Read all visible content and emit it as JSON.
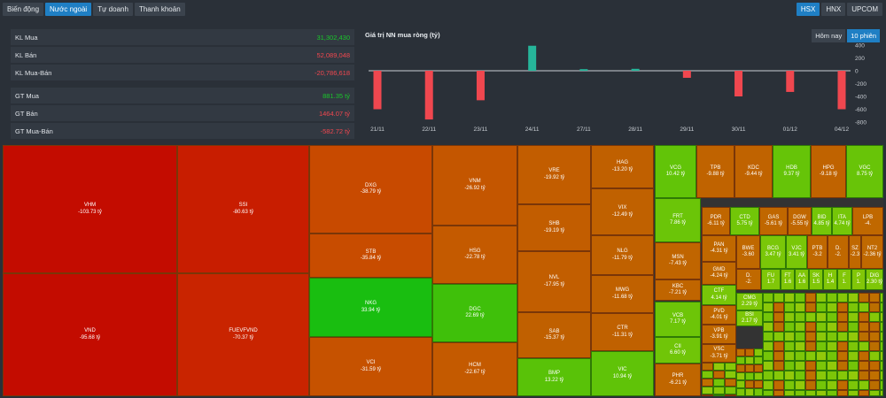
{
  "tabs": [
    "Biến động",
    "Nước ngoài",
    "Tự doanh",
    "Thanh khoản"
  ],
  "active_tab": 1,
  "exchanges": [
    "HSX",
    "HNX",
    "UPCOM"
  ],
  "active_exchange": 0,
  "stats": [
    {
      "label": "KL Mua",
      "value": "31,302,430",
      "color": "g"
    },
    {
      "label": "KL Bán",
      "value": "52,089,048",
      "color": "r"
    },
    {
      "label": "KL Mua-Bán",
      "value": "-20,786,618",
      "color": "r"
    },
    {
      "label": "GT Mua",
      "value": "881.35 tỷ",
      "color": "g"
    },
    {
      "label": "GT Bán",
      "value": "1464.07 tỷ",
      "color": "r"
    },
    {
      "label": "GT Mua-Bán",
      "value": "-582.72 tỷ",
      "color": "r"
    }
  ],
  "chart_data": {
    "type": "bar",
    "title": "Giá trị NN mua ròng (tỷ)",
    "categories": [
      "21/11",
      "",
      "22/11",
      "",
      "23/11",
      "",
      "24/11",
      "",
      "27/11",
      "",
      "28/11",
      "",
      "29/11",
      "",
      "30/11",
      "",
      "01/12",
      "",
      "04/12"
    ],
    "values": [
      -600,
      0,
      -760,
      0,
      -460,
      0,
      390,
      0,
      25,
      0,
      30,
      0,
      -110,
      0,
      -400,
      0,
      -330,
      0,
      -600
    ],
    "ylim": [
      -800,
      400
    ],
    "yticks": [
      "400",
      "200",
      "0",
      "-200",
      "-400",
      "-600",
      "-800"
    ],
    "colors": {
      "pos": "#26b59a",
      "neg": "#f0474f"
    },
    "periods": [
      "Hôm nay",
      "10 phiên"
    ],
    "active_period": 1
  },
  "treemap": [
    {
      "n": "VHM",
      "v": "-103.73 tỷ",
      "c": "#c30c00"
    },
    {
      "n": "VND",
      "v": "-95.68 tỷ",
      "c": "#c30c00"
    },
    {
      "n": "SSI",
      "v": "-80.63 tỷ",
      "c": "#c81d00"
    },
    {
      "n": "FUEVFVND",
      "v": "-70.37 tỷ",
      "c": "#c92400"
    },
    {
      "n": "DXG",
      "v": "-38.79 tỷ",
      "c": "#c84a00"
    },
    {
      "n": "STB",
      "v": "-35.84 tỷ",
      "c": "#c84c00"
    },
    {
      "n": "NKG",
      "v": "33.94 tỷ",
      "c": "#19be10"
    },
    {
      "n": "VCI",
      "v": "-31.59 tỷ",
      "c": "#c65200"
    },
    {
      "n": "VNM",
      "v": "-26.92 tỷ",
      "c": "#c45600"
    },
    {
      "n": "HSG",
      "v": "-22.78 tỷ",
      "c": "#c45a00"
    },
    {
      "n": "DGC",
      "v": "22.69 tỷ",
      "c": "#3fc00a"
    },
    {
      "n": "HCM",
      "v": "-22.67 tỷ",
      "c": "#c45a00"
    },
    {
      "n": "VRE",
      "v": "-19.92 tỷ",
      "c": "#c25d00"
    },
    {
      "n": "SHB",
      "v": "-19.19 tỷ",
      "c": "#c25d00"
    },
    {
      "n": "NVL",
      "v": "-17.95 tỷ",
      "c": "#c25e00"
    },
    {
      "n": "SAB",
      "v": "-15.37 tỷ",
      "c": "#c06000"
    },
    {
      "n": "BMP",
      "v": "13.22 tỷ",
      "c": "#59c208"
    },
    {
      "n": "HAG",
      "v": "-13.20 tỷ",
      "c": "#c06000"
    },
    {
      "n": "VIX",
      "v": "-12.49 tỷ",
      "c": "#c06100"
    },
    {
      "n": "NLG",
      "v": "-11.79 tỷ",
      "c": "#c06100"
    },
    {
      "n": "MWG",
      "v": "-11.68 tỷ",
      "c": "#c06100"
    },
    {
      "n": "CTR",
      "v": "-11.31 tỷ",
      "c": "#c06100"
    },
    {
      "n": "VIC",
      "v": "10.94 tỷ",
      "c": "#60c308"
    },
    {
      "n": "VCG",
      "v": "10.42 tỷ",
      "c": "#62c408"
    },
    {
      "n": "TPB",
      "v": "-9.88 tỷ",
      "c": "#c06300"
    },
    {
      "n": "KDC",
      "v": "-9.44 tỷ",
      "c": "#c06300"
    },
    {
      "n": "HDB",
      "v": "9.37 tỷ",
      "c": "#66c408"
    },
    {
      "n": "HPG",
      "v": "-9.18 tỷ",
      "c": "#c06300"
    },
    {
      "n": "VGC",
      "v": "8.75 tỷ",
      "c": "#68c408"
    },
    {
      "n": "FRT",
      "v": "7.86 tỷ",
      "c": "#6bc508"
    },
    {
      "n": "MSN",
      "v": "-7.43 tỷ",
      "c": "#c06500"
    },
    {
      "n": "KBC",
      "v": "-7.21 tỷ",
      "c": "#c06500"
    },
    {
      "n": "VCB",
      "v": "7.17 tỷ",
      "c": "#6dc508"
    },
    {
      "n": "CII",
      "v": "6.60 tỷ",
      "c": "#70c508"
    },
    {
      "n": "PHR",
      "v": "-6.21 tỷ",
      "c": "#c06600"
    },
    {
      "n": "PDR",
      "v": "-6.11 tỷ",
      "c": "#c06600"
    },
    {
      "n": "CTD",
      "v": "5.75 tỷ",
      "c": "#72c608"
    },
    {
      "n": "GAS",
      "v": "-5.61 tỷ",
      "c": "#c06700"
    },
    {
      "n": "DGW",
      "v": "-5.55 tỷ",
      "c": "#c06700"
    },
    {
      "n": "BID",
      "v": "4.85 tỷ",
      "c": "#75c608"
    },
    {
      "n": "ITA",
      "v": "4.74 tỷ",
      "c": "#75c608"
    },
    {
      "n": "LPB",
      "v": "-4.",
      "c": "#c06800"
    },
    {
      "n": "PAN",
      "v": "-4.31 tỷ",
      "c": "#c06800"
    },
    {
      "n": "GMD",
      "v": "-4.24 tỷ",
      "c": "#c06800"
    },
    {
      "n": "CTF",
      "v": "4.14 tỷ",
      "c": "#78c608"
    },
    {
      "n": "PVD",
      "v": "-4.01 tỷ",
      "c": "#c06800"
    },
    {
      "n": "VPB",
      "v": "-3.91 tỷ",
      "c": "#c06800"
    },
    {
      "n": "VSC",
      "v": "-3.71 tỷ",
      "c": "#c06800"
    },
    {
      "n": "BWE",
      "v": "-3.60",
      "c": "#c06800"
    },
    {
      "n": "BCG",
      "v": "3.47 tỷ",
      "c": "#7ac708"
    },
    {
      "n": "VJC",
      "v": "3.41 tỷ",
      "c": "#7ac708"
    },
    {
      "n": "PTB",
      "v": "-3.2",
      "c": "#c06800"
    },
    {
      "n": "D.",
      "v": "-2.",
      "c": "#c06800"
    },
    {
      "n": "SZ",
      "v": "-2.3",
      "c": "#c06800"
    },
    {
      "n": "NT2",
      "v": "-2.36 tỷ",
      "c": "#c06900"
    },
    {
      "n": "D.",
      "v": "-2.",
      "c": "#c06900"
    },
    {
      "n": "FU",
      "v": "1.7",
      "c": "#80c708"
    },
    {
      "n": "FT",
      "v": "1.6",
      "c": "#80c708"
    },
    {
      "n": "AA",
      "v": "1.6",
      "c": "#80c708"
    },
    {
      "n": "SK",
      "v": "1.5",
      "c": "#80c708"
    },
    {
      "n": "H",
      "v": "1.4",
      "c": "#82c708"
    },
    {
      "n": "F",
      "v": "1.",
      "c": "#82c708"
    },
    {
      "n": "P",
      "v": "1.",
      "c": "#82c708"
    },
    {
      "n": "DIG",
      "v": "2.30 tỷ",
      "c": "#7ec708"
    },
    {
      "n": "CMG",
      "v": "2.29 tỷ",
      "c": "#7ec708"
    },
    {
      "n": "BSI",
      "v": "2.17 tỷ",
      "c": "#7ec708"
    }
  ]
}
